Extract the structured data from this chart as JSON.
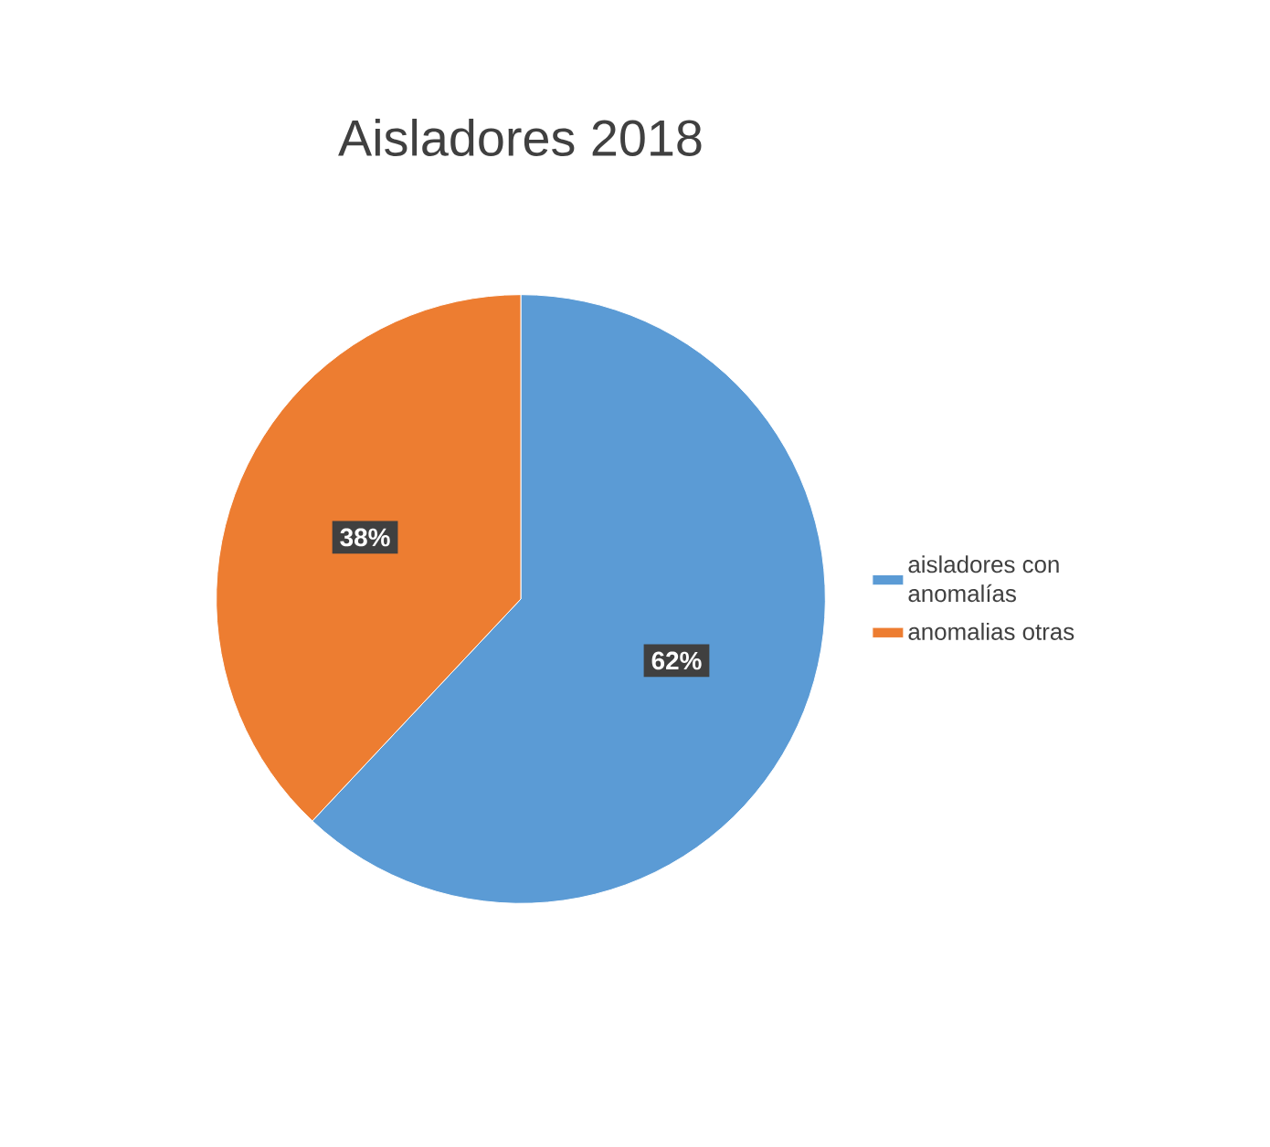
{
  "chart_data": {
    "type": "pie",
    "title": "Aisladores 2018",
    "categories": [
      "aisladores con anomalías",
      "anomalias otras"
    ],
    "values": [
      62,
      38
    ],
    "colors": [
      "#5b9bd5",
      "#ed7d31"
    ],
    "value_labels": [
      "62%",
      "38%"
    ],
    "legend": "right"
  }
}
